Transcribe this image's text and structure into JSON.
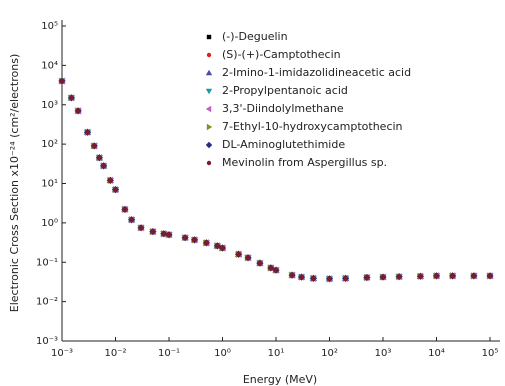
{
  "chart_data": {
    "type": "scatter",
    "xlabel": "Energy (MeV)",
    "ylabel": "Electronic Cross Section x10⁻²⁴ (cm²/electrons)",
    "log_x": true,
    "log_y": true,
    "legend": "top",
    "xlim": [
      0.001,
      100000
    ],
    "ylim": [
      0.001,
      100000
    ],
    "xticks": [
      {
        "value": 0.001,
        "label": "10⁻³"
      },
      {
        "value": 0.01,
        "label": "10⁻²"
      },
      {
        "value": 0.1,
        "label": "10⁻¹"
      },
      {
        "value": 1,
        "label": "10⁰"
      },
      {
        "value": 10,
        "label": "10¹"
      },
      {
        "value": 100,
        "label": "10²"
      },
      {
        "value": 1000,
        "label": "10³"
      },
      {
        "value": 10000,
        "label": "10⁴"
      },
      {
        "value": 100000,
        "label": "10⁵"
      }
    ],
    "yticks": [
      {
        "value": 0.001,
        "label": "10⁻³"
      },
      {
        "value": 0.01,
        "label": "10⁻²"
      },
      {
        "value": 0.1,
        "label": "10⁻¹"
      },
      {
        "value": 1,
        "label": "10⁰"
      },
      {
        "value": 10,
        "label": "10¹"
      },
      {
        "value": 100,
        "label": "10²"
      },
      {
        "value": 1000,
        "label": "10³"
      },
      {
        "value": 10000,
        "label": "10⁴"
      },
      {
        "value": 100000,
        "label": "10⁵"
      }
    ],
    "x": [
      0.001,
      0.0015,
      0.002,
      0.003,
      0.004,
      0.005,
      0.006,
      0.008,
      0.01,
      0.015,
      0.02,
      0.03,
      0.05,
      0.08,
      0.1,
      0.2,
      0.3,
      0.5,
      0.8,
      1,
      2,
      3,
      5,
      8,
      10,
      20,
      30,
      50,
      100,
      200,
      500,
      1000,
      2000,
      5000,
      10000,
      20000,
      50000,
      100000
    ],
    "series": [
      {
        "name": "(-)-Deguelin",
        "color": "#000000",
        "marker": "square",
        "values": [
          4000,
          1500,
          700,
          200,
          90,
          45,
          28,
          12,
          7,
          2.2,
          1.2,
          0.75,
          0.6,
          0.53,
          0.5,
          0.42,
          0.37,
          0.31,
          0.26,
          0.23,
          0.16,
          0.13,
          0.095,
          0.072,
          0.063,
          0.047,
          0.042,
          0.039,
          0.038,
          0.039,
          0.041,
          0.042,
          0.043,
          0.044,
          0.045,
          0.045,
          0.045,
          0.045
        ]
      },
      {
        "name": "(S)-(+)-Camptothecin",
        "color": "#e02020",
        "marker": "circle",
        "values": [
          4000,
          1500,
          700,
          200,
          90,
          45,
          28,
          12,
          7,
          2.2,
          1.2,
          0.75,
          0.6,
          0.53,
          0.5,
          0.42,
          0.37,
          0.31,
          0.26,
          0.23,
          0.16,
          0.13,
          0.095,
          0.072,
          0.063,
          0.047,
          0.042,
          0.039,
          0.038,
          0.039,
          0.041,
          0.042,
          0.043,
          0.044,
          0.045,
          0.045,
          0.045,
          0.045
        ]
      },
      {
        "name": "2-Imino-1-imidazolidineacetic acid",
        "color": "#4a4aa8",
        "marker": "triangle-up",
        "values": [
          4000,
          1500,
          700,
          200,
          90,
          45,
          28,
          12,
          7,
          2.2,
          1.2,
          0.75,
          0.6,
          0.53,
          0.5,
          0.42,
          0.37,
          0.31,
          0.26,
          0.23,
          0.16,
          0.13,
          0.095,
          0.072,
          0.063,
          0.047,
          0.042,
          0.039,
          0.038,
          0.039,
          0.041,
          0.042,
          0.043,
          0.044,
          0.045,
          0.045,
          0.045,
          0.045
        ]
      },
      {
        "name": "2-Propylpentanoic acid",
        "color": "#1a9aa8",
        "marker": "triangle-down",
        "values": [
          4000,
          1500,
          700,
          200,
          90,
          45,
          28,
          12,
          7,
          2.2,
          1.2,
          0.75,
          0.6,
          0.53,
          0.5,
          0.42,
          0.37,
          0.31,
          0.26,
          0.23,
          0.16,
          0.13,
          0.095,
          0.072,
          0.063,
          0.047,
          0.042,
          0.039,
          0.038,
          0.039,
          0.041,
          0.042,
          0.043,
          0.044,
          0.045,
          0.045,
          0.045,
          0.045
        ]
      },
      {
        "name": "3,3'-Diindolylmethane",
        "color": "#c060c0",
        "marker": "triangle-left",
        "values": [
          4000,
          1500,
          700,
          200,
          90,
          45,
          28,
          12,
          7,
          2.2,
          1.2,
          0.75,
          0.6,
          0.53,
          0.5,
          0.42,
          0.37,
          0.31,
          0.26,
          0.23,
          0.16,
          0.13,
          0.095,
          0.072,
          0.063,
          0.047,
          0.042,
          0.039,
          0.038,
          0.039,
          0.041,
          0.042,
          0.043,
          0.044,
          0.045,
          0.045,
          0.045,
          0.045
        ]
      },
      {
        "name": "7-Ethyl-10-hydroxycamptothecin",
        "color": "#8a8a20",
        "marker": "triangle-right",
        "values": [
          4000,
          1500,
          700,
          200,
          90,
          45,
          28,
          12,
          7,
          2.2,
          1.2,
          0.75,
          0.6,
          0.53,
          0.5,
          0.42,
          0.37,
          0.31,
          0.26,
          0.23,
          0.16,
          0.13,
          0.095,
          0.072,
          0.063,
          0.047,
          0.042,
          0.039,
          0.038,
          0.039,
          0.041,
          0.042,
          0.043,
          0.044,
          0.045,
          0.045,
          0.045,
          0.045
        ]
      },
      {
        "name": "DL-Aminoglutethimide",
        "color": "#2a2a80",
        "marker": "diamond",
        "values": [
          4000,
          1500,
          700,
          200,
          90,
          45,
          28,
          12,
          7,
          2.2,
          1.2,
          0.75,
          0.6,
          0.53,
          0.5,
          0.42,
          0.37,
          0.31,
          0.26,
          0.23,
          0.16,
          0.13,
          0.095,
          0.072,
          0.063,
          0.047,
          0.042,
          0.039,
          0.038,
          0.039,
          0.041,
          0.042,
          0.043,
          0.044,
          0.045,
          0.045,
          0.045,
          0.045
        ]
      },
      {
        "name": "Mevinolin from Aspergillus sp.",
        "color": "#7a1c2c",
        "marker": "circle",
        "values": [
          4000,
          1500,
          700,
          200,
          90,
          45,
          28,
          12,
          7,
          2.2,
          1.2,
          0.75,
          0.6,
          0.53,
          0.5,
          0.42,
          0.37,
          0.31,
          0.26,
          0.23,
          0.16,
          0.13,
          0.095,
          0.072,
          0.063,
          0.047,
          0.042,
          0.039,
          0.038,
          0.039,
          0.041,
          0.042,
          0.043,
          0.044,
          0.045,
          0.045,
          0.045,
          0.045
        ]
      }
    ]
  }
}
